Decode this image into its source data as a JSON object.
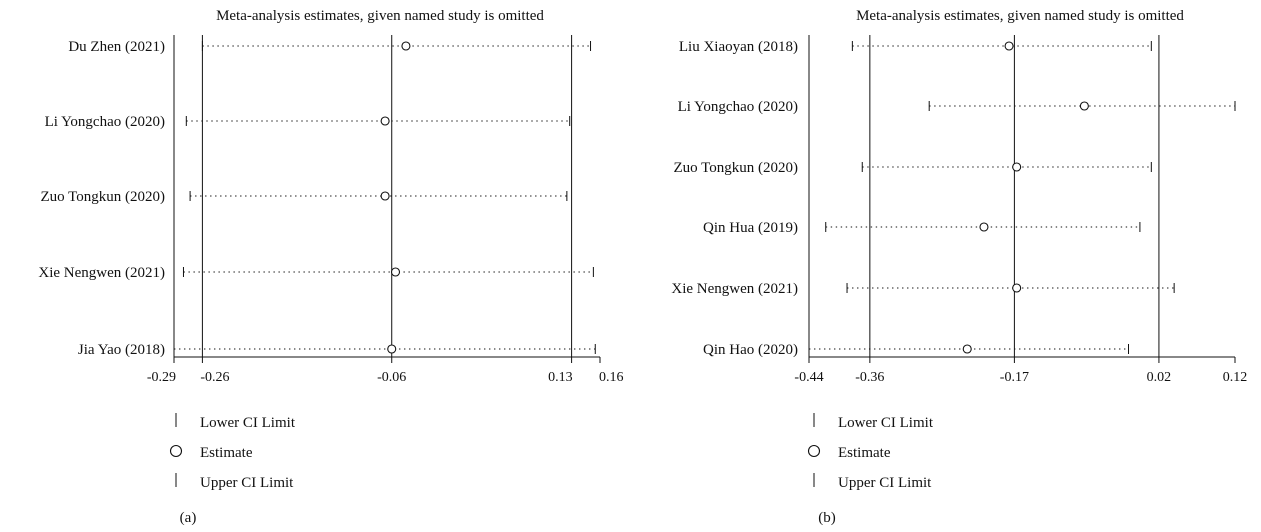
{
  "chart_data": [
    {
      "type": "forest",
      "panel_label": "(a)",
      "title": "Meta-analysis estimates, given named study is omitted",
      "xlim": [
        -0.29,
        0.16
      ],
      "x_ticks": [
        -0.29,
        -0.26,
        -0.06,
        0.13,
        0.16
      ],
      "x_tick_labels": [
        "-0.29",
        "-0.26",
        "-0.06",
        "0.13",
        "0.16"
      ],
      "reference_lines": [
        -0.26,
        -0.06,
        0.13
      ],
      "studies": [
        {
          "label": "Du Zhen (2021)",
          "lower": -0.26,
          "estimate": -0.045,
          "upper": 0.15
        },
        {
          "label": "Li Yongchao (2020)",
          "lower": -0.277,
          "estimate": -0.067,
          "upper": 0.128
        },
        {
          "label": "Zuo Tongkun (2020)",
          "lower": -0.273,
          "estimate": -0.067,
          "upper": 0.125
        },
        {
          "label": "Xie Nengwen (2021)",
          "lower": -0.28,
          "estimate": -0.056,
          "upper": 0.153
        },
        {
          "label": "Jia Yao (2018)",
          "lower": -0.29,
          "estimate": -0.06,
          "upper": 0.155
        }
      ],
      "legend": [
        {
          "symbol": "tick",
          "label": "Lower CI Limit"
        },
        {
          "symbol": "circle",
          "label": "Estimate"
        },
        {
          "symbol": "tick",
          "label": "Upper CI Limit"
        }
      ]
    },
    {
      "type": "forest",
      "panel_label": "(b)",
      "title": "Meta-analysis estimates, given named study is omitted",
      "xlim": [
        -0.44,
        0.12
      ],
      "x_ticks": [
        -0.44,
        -0.36,
        -0.17,
        0.02,
        0.12
      ],
      "x_tick_labels": [
        "-0.44",
        "-0.36",
        "-0.17",
        "0.02",
        "0.12"
      ],
      "reference_lines": [
        -0.36,
        -0.17,
        0.02
      ],
      "studies": [
        {
          "label": "Liu Xiaoyan (2018)",
          "lower": -0.383,
          "estimate": -0.177,
          "upper": 0.01
        },
        {
          "label": "Li Yongchao (2020)",
          "lower": -0.282,
          "estimate": -0.078,
          "upper": 0.12
        },
        {
          "label": "Zuo Tongkun (2020)",
          "lower": -0.37,
          "estimate": -0.167,
          "upper": 0.01
        },
        {
          "label": "Qin Hua (2019)",
          "lower": -0.418,
          "estimate": -0.21,
          "upper": -0.005
        },
        {
          "label": "Xie Nengwen (2021)",
          "lower": -0.39,
          "estimate": -0.167,
          "upper": 0.04
        },
        {
          "label": "Qin Hao (2020)",
          "lower": -0.44,
          "estimate": -0.232,
          "upper": -0.02
        }
      ],
      "legend": [
        {
          "symbol": "tick",
          "label": "Lower CI Limit"
        },
        {
          "symbol": "circle",
          "label": "Estimate"
        },
        {
          "symbol": "tick",
          "label": "Upper CI Limit"
        }
      ]
    }
  ]
}
